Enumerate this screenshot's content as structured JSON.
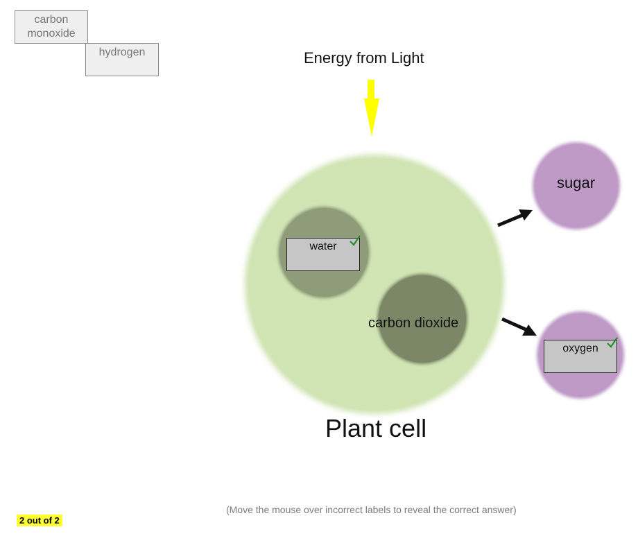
{
  "label_bank": {
    "items": [
      {
        "line1": "carbon",
        "line2": "monoxide"
      },
      {
        "line1": "hydrogen"
      }
    ]
  },
  "diagram": {
    "energy_label": "Energy from Light",
    "cell_label": "Plant cell",
    "carbon_dioxide_label": "carbon dioxide",
    "sugar_label": "sugar"
  },
  "placed_labels": [
    {
      "text": "water",
      "status": "correct"
    },
    {
      "text": "oxygen",
      "status": "correct"
    }
  ],
  "score": "2 out of 2",
  "hint": "(Move the mouse over incorrect labels to reveal the correct answer)",
  "colors": {
    "light_arrow": "#ffff00",
    "cell": "#d0e4b4",
    "water_blob": "#8e9c7a",
    "co2_blob": "#7b8766",
    "product_blob": "#bf9ac7",
    "check": "#2a8a2a",
    "score_bg": "#ffff33"
  }
}
